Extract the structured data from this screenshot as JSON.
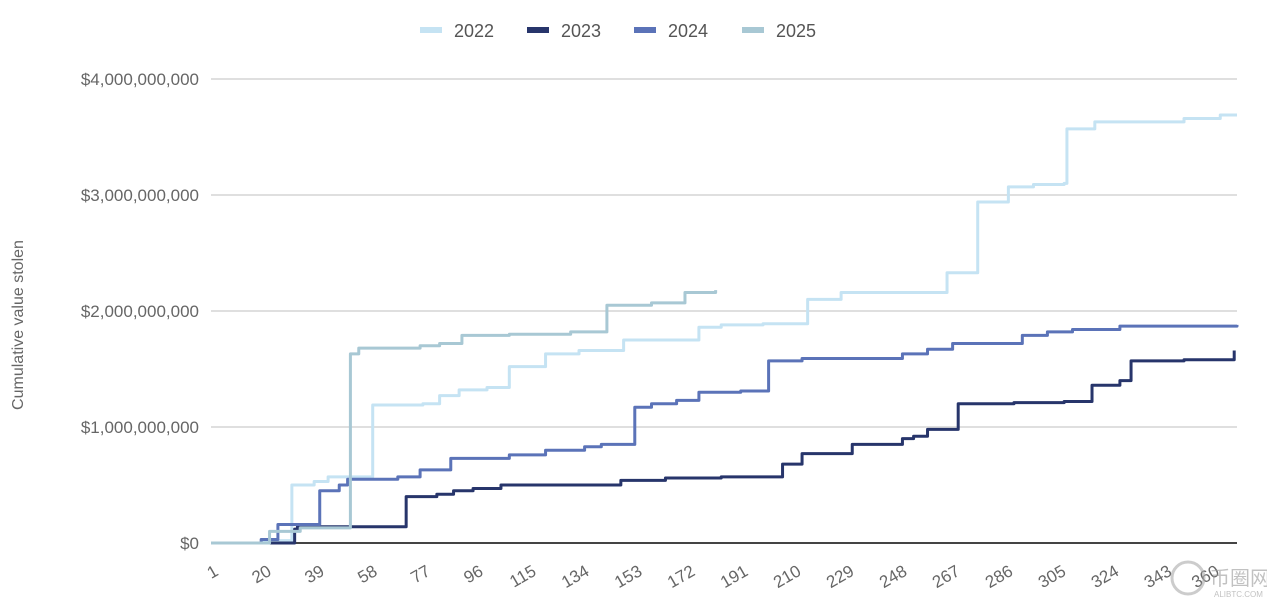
{
  "chart_data": {
    "type": "line",
    "title": "",
    "xlabel": "",
    "ylabel": "Cumulative value stolen",
    "xlim": [
      1,
      369
    ],
    "ylim": [
      0,
      4000000000
    ],
    "x_ticks": [
      "1",
      "20",
      "39",
      "58",
      "77",
      "96",
      "115",
      "134",
      "153",
      "172",
      "191",
      "210",
      "229",
      "248",
      "267",
      "286",
      "305",
      "324",
      "343",
      "360"
    ],
    "y_ticks": [
      "$0",
      "$1,000,000,000",
      "$2,000,000,000",
      "$3,000,000,000",
      "$4,000,000,000"
    ],
    "y_tick_values": [
      0,
      1000000000,
      2000000000,
      3000000000,
      4000000000
    ],
    "grid": "horizontal",
    "legend_position": "top",
    "line_shape": "step",
    "series": [
      {
        "name": "2022",
        "color": "#c5e3f3",
        "points": [
          [
            1,
            0
          ],
          [
            20,
            0.02
          ],
          [
            30,
            0.5
          ],
          [
            38,
            0.53
          ],
          [
            43,
            0.57
          ],
          [
            59,
            1.19
          ],
          [
            77,
            1.2
          ],
          [
            83,
            1.27
          ],
          [
            90,
            1.32
          ],
          [
            100,
            1.34
          ],
          [
            108,
            1.52
          ],
          [
            121,
            1.63
          ],
          [
            133,
            1.66
          ],
          [
            149,
            1.75
          ],
          [
            176,
            1.86
          ],
          [
            184,
            1.88
          ],
          [
            199,
            1.89
          ],
          [
            215,
            2.1
          ],
          [
            227,
            2.16
          ],
          [
            265,
            2.33
          ],
          [
            276,
            2.94
          ],
          [
            287,
            3.07
          ],
          [
            296,
            3.09
          ],
          [
            307,
            3.1
          ],
          [
            308,
            3.57
          ],
          [
            318,
            3.63
          ],
          [
            350,
            3.66
          ],
          [
            363,
            3.69
          ],
          [
            369,
            3.69
          ]
        ]
      },
      {
        "name": "2023",
        "color": "#27356b",
        "points": [
          [
            1,
            0
          ],
          [
            31,
            0.12
          ],
          [
            32,
            0.14
          ],
          [
            71,
            0.4
          ],
          [
            82,
            0.42
          ],
          [
            88,
            0.45
          ],
          [
            95,
            0.47
          ],
          [
            105,
            0.5
          ],
          [
            148,
            0.54
          ],
          [
            164,
            0.56
          ],
          [
            184,
            0.57
          ],
          [
            206,
            0.68
          ],
          [
            213,
            0.77
          ],
          [
            231,
            0.85
          ],
          [
            249,
            0.9
          ],
          [
            253,
            0.92
          ],
          [
            258,
            0.98
          ],
          [
            269,
            1.2
          ],
          [
            289,
            1.21
          ],
          [
            307,
            1.22
          ],
          [
            317,
            1.36
          ],
          [
            327,
            1.4
          ],
          [
            331,
            1.57
          ],
          [
            350,
            1.58
          ],
          [
            367,
            1.58
          ],
          [
            368,
            1.66
          ]
        ]
      },
      {
        "name": "2024",
        "color": "#5b73b8",
        "points": [
          [
            1,
            0
          ],
          [
            19,
            0.03
          ],
          [
            25,
            0.16
          ],
          [
            40,
            0.45
          ],
          [
            47,
            0.5
          ],
          [
            50,
            0.55
          ],
          [
            68,
            0.57
          ],
          [
            76,
            0.63
          ],
          [
            87,
            0.73
          ],
          [
            108,
            0.76
          ],
          [
            121,
            0.8
          ],
          [
            135,
            0.83
          ],
          [
            141,
            0.85
          ],
          [
            153,
            1.17
          ],
          [
            159,
            1.2
          ],
          [
            168,
            1.23
          ],
          [
            176,
            1.3
          ],
          [
            191,
            1.31
          ],
          [
            201,
            1.57
          ],
          [
            213,
            1.59
          ],
          [
            249,
            1.63
          ],
          [
            258,
            1.67
          ],
          [
            267,
            1.72
          ],
          [
            292,
            1.79
          ],
          [
            301,
            1.82
          ],
          [
            310,
            1.84
          ],
          [
            327,
            1.87
          ],
          [
            369,
            1.88
          ]
        ]
      },
      {
        "name": "2025",
        "color": "#a8c8d4",
        "points": [
          [
            1,
            0
          ],
          [
            22,
            0.1
          ],
          [
            33,
            0.13
          ],
          [
            51,
            1.63
          ],
          [
            54,
            1.68
          ],
          [
            76,
            1.7
          ],
          [
            83,
            1.72
          ],
          [
            91,
            1.79
          ],
          [
            108,
            1.8
          ],
          [
            130,
            1.82
          ],
          [
            143,
            2.05
          ],
          [
            159,
            2.07
          ],
          [
            171,
            2.16
          ],
          [
            182,
            2.18
          ]
        ]
      }
    ],
    "value_unit_multiplier": 1000000000
  },
  "watermark": {
    "text": "币圈网",
    "sub": "ALIBTC.COM"
  }
}
